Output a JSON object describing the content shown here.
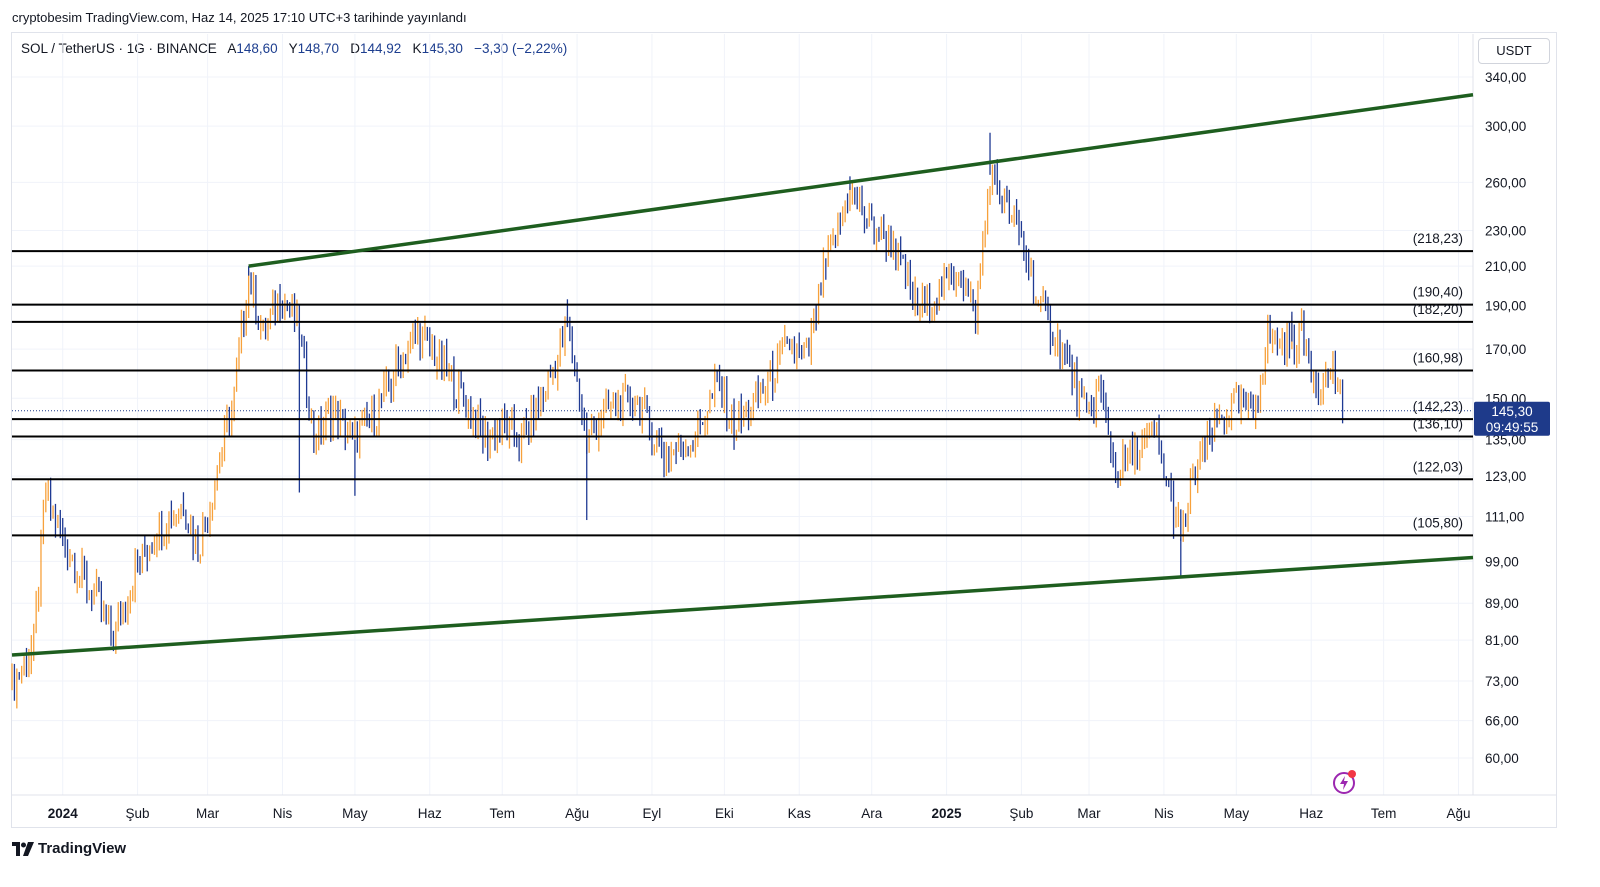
{
  "header": {
    "publish_line": "cryptobesim TradingView.com, Haz 14, 2025 17:10 UTC+3 tarihinde yayınlandı"
  },
  "symbol": {
    "name": "SOL / TetherUS · 1G · BINANCE",
    "open_label": "A",
    "open": "148,60",
    "high_label": "Y",
    "high": "148,70",
    "low_label": "D",
    "low": "144,92",
    "close_label": "K",
    "close": "145,30",
    "change": "−3,30 (−2,22%)"
  },
  "currency": "USDT",
  "price_tag": {
    "price": "145,30",
    "countdown": "09:49:55"
  },
  "footer": {
    "brand": "TradingView"
  },
  "colors": {
    "up": "#f7a13b",
    "down": "#1f3a93",
    "trendline": "#1e5e1f",
    "level": "#000000",
    "price_tag": "#1e3a8a"
  },
  "chart_data": {
    "type": "candlestick",
    "y_scale": "log",
    "ylim": [
      55,
      350
    ],
    "y_ticks": [
      {
        "value": 340,
        "label": "340,00"
      },
      {
        "value": 300,
        "label": "300,00"
      },
      {
        "value": 260,
        "label": "260,00"
      },
      {
        "value": 230,
        "label": "230,00"
      },
      {
        "value": 210,
        "label": "210,00"
      },
      {
        "value": 190,
        "label": "190,00"
      },
      {
        "value": 170,
        "label": "170,00"
      },
      {
        "value": 150,
        "label": "150,00"
      },
      {
        "value": 135,
        "label": "135,00"
      },
      {
        "value": 123,
        "label": "123,00"
      },
      {
        "value": 111,
        "label": "111,00"
      },
      {
        "value": 99,
        "label": "99,00"
      },
      {
        "value": 89,
        "label": "89,00"
      },
      {
        "value": 81,
        "label": "81,00"
      },
      {
        "value": 73,
        "label": "73,00"
      },
      {
        "value": 66,
        "label": "66,00"
      },
      {
        "value": 60,
        "label": "60,00"
      }
    ],
    "x_range": [
      "2023-12-11",
      "2025-08-07"
    ],
    "x_ticks": [
      {
        "date": "2024-01-01",
        "label": "2024",
        "bold": true
      },
      {
        "date": "2024-02-01",
        "label": "Şub"
      },
      {
        "date": "2024-03-01",
        "label": "Mar"
      },
      {
        "date": "2024-04-01",
        "label": "Nis"
      },
      {
        "date": "2024-05-01",
        "label": "May"
      },
      {
        "date": "2024-06-01",
        "label": "Haz"
      },
      {
        "date": "2024-07-01",
        "label": "Tem"
      },
      {
        "date": "2024-08-01",
        "label": "Ağu"
      },
      {
        "date": "2024-09-01",
        "label": "Eyl"
      },
      {
        "date": "2024-10-01",
        "label": "Eki"
      },
      {
        "date": "2024-11-01",
        "label": "Kas"
      },
      {
        "date": "2024-12-01",
        "label": "Ara"
      },
      {
        "date": "2025-01-01",
        "label": "2025",
        "bold": true
      },
      {
        "date": "2025-02-01",
        "label": "Şub"
      },
      {
        "date": "2025-03-01",
        "label": "Mar"
      },
      {
        "date": "2025-04-01",
        "label": "Nis"
      },
      {
        "date": "2025-05-01",
        "label": "May"
      },
      {
        "date": "2025-06-01",
        "label": "Haz"
      },
      {
        "date": "2025-07-01",
        "label": "Tem"
      },
      {
        "date": "2025-08-01",
        "label": "Ağu"
      }
    ],
    "horizontal_levels": [
      {
        "value": 218.23,
        "label": "(218,23)"
      },
      {
        "value": 190.4,
        "label": "(190,40)"
      },
      {
        "value": 182.2,
        "label": "(182,20)"
      },
      {
        "value": 160.98,
        "label": "(160,98)"
      },
      {
        "value": 142.23,
        "label": "(142,23)"
      },
      {
        "value": 136.1,
        "label": "(136,10)"
      },
      {
        "value": 122.03,
        "label": "(122,03)"
      },
      {
        "value": 105.8,
        "label": "(105,80)"
      }
    ],
    "trendlines": [
      {
        "from": {
          "date": "2024-03-18",
          "value": 210
        },
        "to": {
          "date": "2025-08-07",
          "value": 325
        }
      },
      {
        "from": {
          "date": "2023-12-11",
          "value": 78
        },
        "to": {
          "date": "2025-08-07",
          "value": 100
        }
      }
    ],
    "price_path": [
      [
        "2023-12-11",
        72
      ],
      [
        "2023-12-20",
        80
      ],
      [
        "2023-12-25",
        118
      ],
      [
        "2024-01-01",
        105
      ],
      [
        "2024-01-08",
        96
      ],
      [
        "2024-01-15",
        90
      ],
      [
        "2024-01-22",
        82
      ],
      [
        "2024-02-01",
        98
      ],
      [
        "2024-02-10",
        108
      ],
      [
        "2024-02-20",
        115
      ],
      [
        "2024-02-26",
        102
      ],
      [
        "2024-03-05",
        125
      ],
      [
        "2024-03-12",
        150
      ],
      [
        "2024-03-18",
        205
      ],
      [
        "2024-03-24",
        175
      ],
      [
        "2024-03-31",
        195
      ],
      [
        "2024-04-08",
        180
      ],
      [
        "2024-04-14",
        135
      ],
      [
        "2024-04-22",
        145
      ],
      [
        "2024-05-01",
        135
      ],
      [
        "2024-05-10",
        145
      ],
      [
        "2024-05-20",
        165
      ],
      [
        "2024-05-27",
        178
      ],
      [
        "2024-06-05",
        165
      ],
      [
        "2024-06-15",
        150
      ],
      [
        "2024-06-24",
        135
      ],
      [
        "2024-07-01",
        140
      ],
      [
        "2024-07-08",
        135
      ],
      [
        "2024-07-18",
        150
      ],
      [
        "2024-07-28",
        180
      ],
      [
        "2024-08-05",
        135
      ],
      [
        "2024-08-12",
        145
      ],
      [
        "2024-08-25",
        150
      ],
      [
        "2024-09-06",
        130
      ],
      [
        "2024-09-18",
        135
      ],
      [
        "2024-09-28",
        155
      ],
      [
        "2024-10-05",
        140
      ],
      [
        "2024-10-14",
        148
      ],
      [
        "2024-10-21",
        160
      ],
      [
        "2024-10-28",
        172
      ],
      [
        "2024-11-04",
        165
      ],
      [
        "2024-11-11",
        205
      ],
      [
        "2024-11-22",
        255
      ],
      [
        "2024-12-01",
        232
      ],
      [
        "2024-12-10",
        222
      ],
      [
        "2024-12-20",
        188
      ],
      [
        "2024-12-30",
        198
      ],
      [
        "2025-01-06",
        210
      ],
      [
        "2025-01-13",
        185
      ],
      [
        "2025-01-19",
        265
      ],
      [
        "2025-01-25",
        245
      ],
      [
        "2025-02-01",
        225
      ],
      [
        "2025-02-08",
        190
      ],
      [
        "2025-02-18",
        170
      ],
      [
        "2025-02-28",
        142
      ],
      [
        "2025-03-05",
        155
      ],
      [
        "2025-03-12",
        125
      ],
      [
        "2025-03-20",
        130
      ],
      [
        "2025-03-28",
        138
      ],
      [
        "2025-04-01",
        125
      ],
      [
        "2025-04-08",
        105
      ],
      [
        "2025-04-14",
        125
      ],
      [
        "2025-04-22",
        140
      ],
      [
        "2025-04-30",
        148
      ],
      [
        "2025-05-08",
        145
      ],
      [
        "2025-05-14",
        175
      ],
      [
        "2025-05-22",
        172
      ],
      [
        "2025-05-28",
        176
      ],
      [
        "2025-06-04",
        155
      ],
      [
        "2025-06-10",
        162
      ],
      [
        "2025-06-14",
        145.3
      ]
    ],
    "extremes": [
      [
        "2024-03-18",
        210
      ],
      [
        "2024-04-08",
        118
      ],
      [
        "2024-05-01",
        117
      ],
      [
        "2024-07-28",
        193
      ],
      [
        "2024-08-05",
        110
      ],
      [
        "2024-11-22",
        264
      ],
      [
        "2025-01-19",
        295
      ],
      [
        "2025-04-08",
        95
      ],
      [
        "2025-05-24",
        187
      ]
    ]
  }
}
